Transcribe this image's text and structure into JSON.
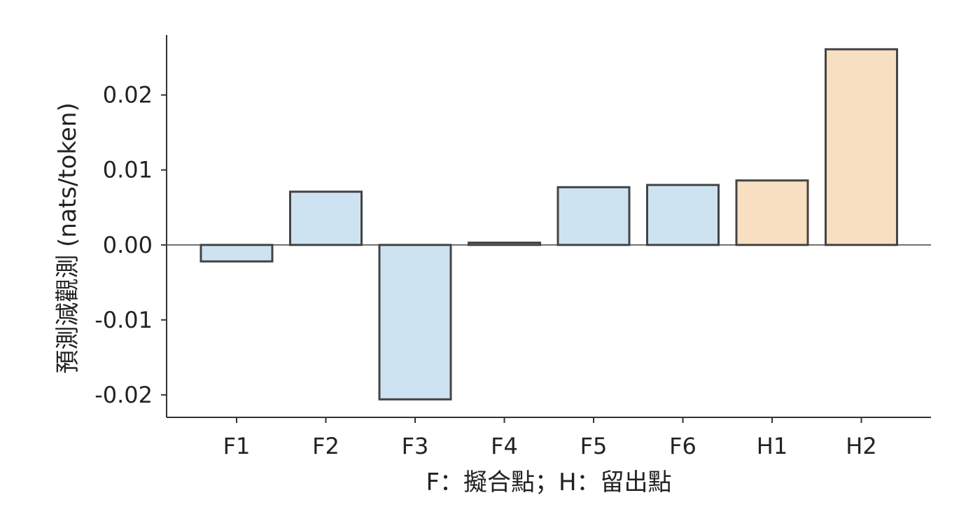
{
  "chart_data": {
    "type": "bar",
    "title": "",
    "xlabel": "F：擬合點；H：留出點",
    "ylabel": "預測減觀測 (nats/token)",
    "categories": [
      "F1",
      "F2",
      "F3",
      "F4",
      "F5",
      "F6",
      "H1",
      "H2"
    ],
    "values": [
      -0.0022,
      0.0071,
      -0.0206,
      0.0003,
      0.0077,
      0.008,
      0.0086,
      0.0261
    ],
    "groups": [
      "fit",
      "fit",
      "fit",
      "fit",
      "fit",
      "fit",
      "holdout",
      "holdout"
    ],
    "ylim": [
      -0.023,
      0.028
    ],
    "yticks": [
      0.02,
      0.01,
      0.0,
      -0.01,
      -0.02
    ],
    "ytick_labels": [
      "0.02",
      "0.01",
      "0.00",
      "-0.01",
      "-0.02"
    ],
    "grid": false,
    "zero_line": true,
    "colors": {
      "fit": "#cde3f2",
      "holdout": "#f8dfc2",
      "bar_edge": "#444444",
      "axis": "#333333"
    }
  }
}
